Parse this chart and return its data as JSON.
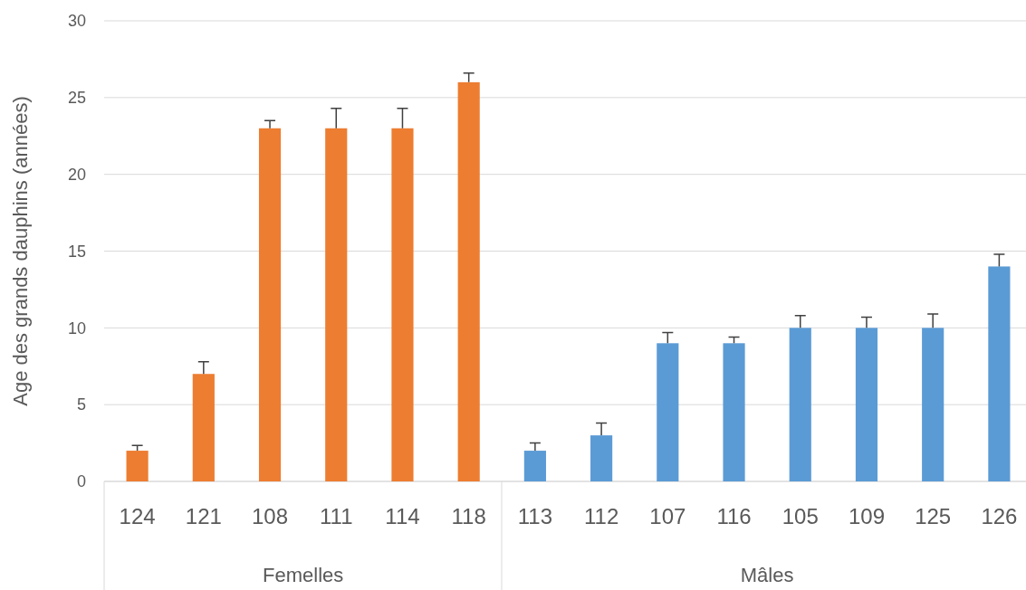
{
  "chart_data": {
    "type": "bar",
    "ylabel": "Age des grands dauphins (années)",
    "categories": [
      "124",
      "121",
      "108",
      "111",
      "114",
      "118",
      "113",
      "112",
      "107",
      "116",
      "105",
      "109",
      "125",
      "126"
    ],
    "series": [
      {
        "color": "#ed7d31",
        "values": [
          2,
          7,
          23,
          23,
          23,
          26,
          null,
          null,
          null,
          null,
          null,
          null,
          null,
          null
        ],
        "errors": [
          [
            2,
            2.35
          ],
          [
            7,
            7.8
          ],
          [
            23,
            23.5
          ],
          [
            23,
            24.3
          ],
          [
            23,
            24.3
          ],
          [
            26,
            26.6
          ],
          null,
          null,
          null,
          null,
          null,
          null,
          null,
          null
        ]
      },
      {
        "color": "#5b9bd5",
        "values": [
          null,
          null,
          null,
          null,
          null,
          null,
          2,
          3,
          9,
          9,
          10,
          10,
          10,
          14
        ],
        "errors": [
          null,
          null,
          null,
          null,
          null,
          null,
          [
            2,
            2.5
          ],
          [
            3,
            3.8
          ],
          [
            9,
            9.7
          ],
          [
            9,
            9.4
          ],
          [
            10,
            10.8
          ],
          [
            10,
            10.7
          ],
          [
            10,
            10.9
          ],
          [
            14,
            14.8
          ]
        ]
      }
    ],
    "ylim": [
      0,
      30
    ],
    "yticks": [
      0,
      5,
      10,
      15,
      20,
      25,
      30
    ],
    "grid": "y",
    "annotations": [
      "Femelles",
      "Mâles"
    ]
  }
}
